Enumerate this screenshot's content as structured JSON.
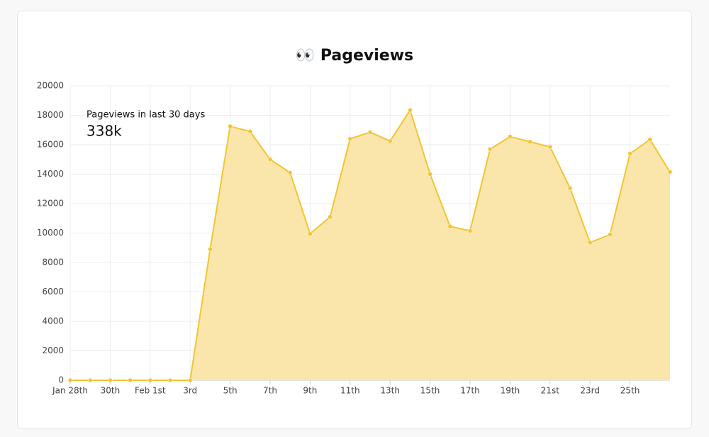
{
  "chart_data": {
    "type": "area",
    "title": "👀 Pageviews",
    "annotation_label": "Pageviews in last 30 days",
    "annotation_value": "338k",
    "categories": [
      "Jan 28th",
      null,
      "30th",
      null,
      "Feb 1st",
      null,
      "3rd",
      null,
      "5th",
      null,
      "7th",
      null,
      "9th",
      null,
      "11th",
      null,
      "13th",
      null,
      "15th",
      null,
      "17th",
      null,
      "19th",
      null,
      "21st",
      null,
      "23rd",
      null,
      "25th",
      null,
      null
    ],
    "values": [
      0,
      0,
      0,
      0,
      0,
      0,
      0,
      8900,
      17250,
      16900,
      15000,
      14100,
      9950,
      11100,
      16400,
      16850,
      16250,
      18350,
      14000,
      10450,
      10150,
      15700,
      16550,
      16200,
      15850,
      13050,
      9350,
      9900,
      15400,
      16350,
      14150
    ],
    "color": "#f2c531",
    "fill_color": "#fae6ab",
    "ylim": [
      0,
      20000
    ],
    "yticks": [
      0,
      2000,
      4000,
      6000,
      8000,
      10000,
      12000,
      14000,
      16000,
      18000,
      20000
    ],
    "grid": true
  }
}
